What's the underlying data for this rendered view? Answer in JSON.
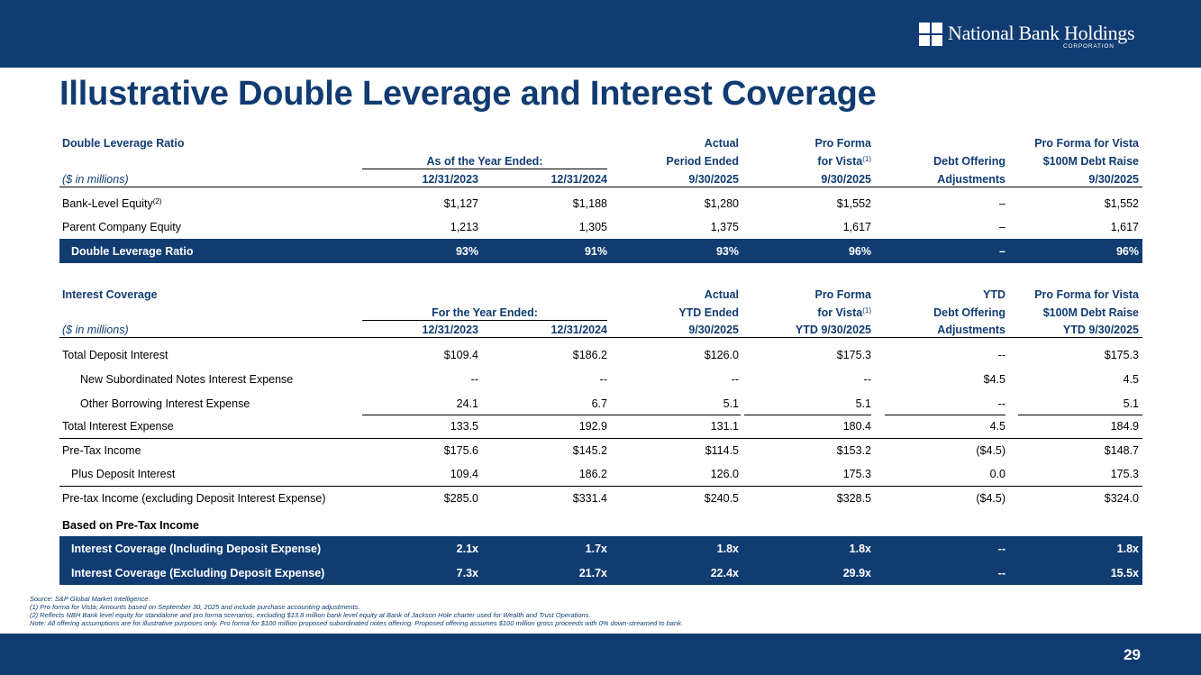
{
  "brand": {
    "name": "National Bank Holdings",
    "sub": "CORPORATION",
    "primary_color": "#113C72"
  },
  "title": "Illustrative Double Leverage and Interest Coverage",
  "dlr": {
    "section_title": "Double Leverage Ratio",
    "units": "($ in millions)",
    "group_header": "As of the Year Ended:",
    "col_headers": {
      "actual_l1": "Actual",
      "actual_l2": "Period Ended",
      "pf_l1": "Pro Forma",
      "pf_l2": "for Vista",
      "pf_sup": "(1)",
      "adj_l2": "Debt Offering",
      "pfv_l1": "Pro Forma for Vista",
      "pfv_l2": "$100M Debt Raise"
    },
    "cols": [
      "12/31/2023",
      "12/31/2024",
      "9/30/2025",
      "9/30/2025",
      "Adjustments",
      "9/30/2025"
    ],
    "rows": [
      {
        "label": "Bank-Level Equity",
        "sup": "(2)",
        "values": [
          "$1,127",
          "$1,188",
          "$1,280",
          "$1,552",
          "–",
          "$1,552"
        ]
      },
      {
        "label": "Parent Company Equity",
        "values": [
          "1,213",
          "1,305",
          "1,375",
          "1,617",
          "–",
          "1,617"
        ]
      }
    ],
    "total": {
      "label": "Double Leverage Ratio",
      "values": [
        "93%",
        "91%",
        "93%",
        "96%",
        "–",
        "96%"
      ]
    }
  },
  "ic": {
    "section_title": "Interest Coverage",
    "units": "($ in millions)",
    "group_header": "For the Year Ended:",
    "col_headers": {
      "actual_l1": "Actual",
      "actual_l2": "YTD Ended",
      "pf_l1": "Pro Forma",
      "pf_l2": "for Vista",
      "pf_sup": "(1)",
      "adj_l1": "YTD",
      "adj_l2": "Debt Offering",
      "pfv_l1": "Pro Forma for Vista",
      "pfv_l2": "$100M Debt Raise"
    },
    "cols": [
      "12/31/2023",
      "12/31/2024",
      "9/30/2025",
      "YTD 9/30/2025",
      "Adjustments",
      "YTD 9/30/2025"
    ],
    "rows": [
      {
        "label": "Total Deposit Interest",
        "values": [
          "$109.4",
          "$186.2",
          "$126.0",
          "$175.3",
          "--",
          "$175.3"
        ]
      },
      {
        "label": "New Subordinated Notes Interest Expense",
        "values": [
          "--",
          "--",
          "--",
          "--",
          "$4.5",
          "4.5"
        ]
      },
      {
        "label": "Other Borrowing Interest Expense",
        "values": [
          "24.1",
          "6.7",
          "5.1",
          "5.1",
          "--",
          "5.1"
        ]
      },
      {
        "label": "Total Interest Expense",
        "values": [
          "133.5",
          "192.9",
          "131.1",
          "180.4",
          "4.5",
          "184.9"
        ]
      },
      {
        "label": "Pre-Tax Income",
        "values": [
          "$175.6",
          "$145.2",
          "$114.5",
          "$153.2",
          "($4.5)",
          "$148.7"
        ]
      },
      {
        "label": "Plus Deposit Interest",
        "values": [
          "109.4",
          "186.2",
          "126.0",
          "175.3",
          "0.0",
          "175.3"
        ]
      },
      {
        "label": "Pre-tax Income (excluding Deposit Interest Expense)",
        "values": [
          "$285.0",
          "$331.4",
          "$240.5",
          "$328.5",
          "($4.5)",
          "$324.0"
        ]
      }
    ],
    "subheading": "Based on Pre-Tax Income",
    "totals": [
      {
        "label": "Interest Coverage (Including Deposit Expense)",
        "values": [
          "2.1x",
          "1.7x",
          "1.8x",
          "1.8x",
          "--",
          "1.8x"
        ]
      },
      {
        "label": "Interest Coverage (Excluding Deposit Expense)",
        "values": [
          "7.3x",
          "21.7x",
          "22.4x",
          "29.9x",
          "--",
          "15.5x"
        ]
      }
    ]
  },
  "footnotes": {
    "source": "Source: S&P Global Market Intelligence.",
    "n1": "(1)      Pro forma for Vista; Amounts based on September 30, 2025 and include purchase accounting adjustments.",
    "n2": "(2)      Reflects NBH Bank level equity for standalone and pro forma scenarios, excluding $13.8 million bank level equity at Bank of Jackson Hole charter used for Wealth and Trust Operations.",
    "note": "Note: All offering assumptions are for illustrative purposes only. Pro forma for $100 million proposed subordinated notes offering. Proposed offering assumes $100 million gross proceeds with 0% down-streamed to bank."
  },
  "page_number": "29"
}
